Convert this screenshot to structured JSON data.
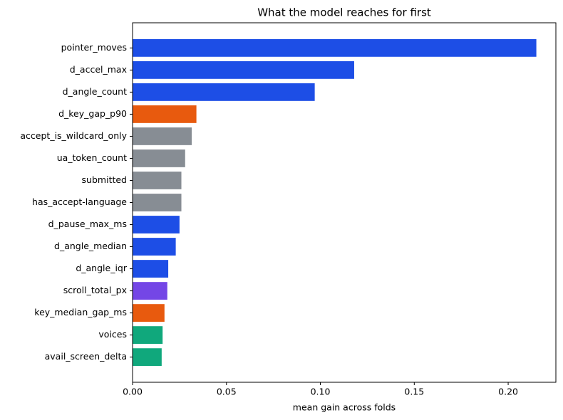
{
  "chart_data": {
    "type": "barh",
    "title": "What the model reaches for first",
    "xlabel": "mean gain across folds",
    "categories": [
      "pointer_moves",
      "d_accel_max",
      "d_angle_count",
      "d_key_gap_p90",
      "accept_is_wildcard_only",
      "ua_token_count",
      "submitted",
      "has_accept-language",
      "d_pause_max_ms",
      "d_angle_median",
      "d_angle_iqr",
      "scroll_total_px",
      "key_median_gap_ms",
      "voices",
      "avail_screen_delta"
    ],
    "values": [
      0.215,
      0.118,
      0.097,
      0.034,
      0.0315,
      0.028,
      0.026,
      0.026,
      0.025,
      0.023,
      0.019,
      0.0185,
      0.017,
      0.016,
      0.0155
    ],
    "colors": [
      "#1d4ee6",
      "#1d4ee6",
      "#1d4ee6",
      "#e85a0e",
      "#878d94",
      "#878d94",
      "#878d94",
      "#878d94",
      "#1d4ee6",
      "#1d4ee6",
      "#1d4ee6",
      "#7446e6",
      "#e85a0e",
      "#10a87c",
      "#10a87c"
    ],
    "xlim": [
      0,
      0.2254
    ],
    "xticks": [
      {
        "value": 0,
        "label": "0.00"
      },
      0.05,
      {
        "value": 0.1,
        "label": "0.10"
      },
      0.15,
      {
        "value": 0.2,
        "label": "0.20"
      }
    ],
    "grid": false
  }
}
